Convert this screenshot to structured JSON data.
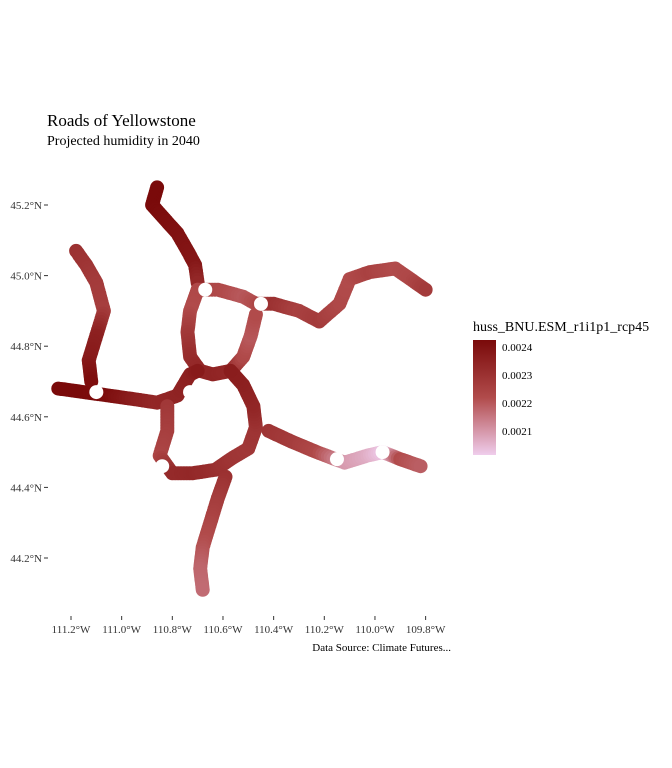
{
  "title": "Roads of Yellowstone",
  "subtitle": "Projected humidity in 2040",
  "caption": "Data Source: Climate Futures...",
  "legend": {
    "title": "huss_BNU.ESM_r1i1p1_rcp45",
    "labels": [
      "0.0024",
      "0.0023",
      "0.0022",
      "0.0021"
    ],
    "colors": {
      "high": "#7a0a0a",
      "mid": "#b14b4b",
      "low": "#efcdec"
    }
  },
  "axes": {
    "x_ticks": [
      "111.2°W",
      "111.0°W",
      "110.8°W",
      "110.6°W",
      "110.4°W",
      "110.2°W",
      "110.0°W",
      "109.8°W"
    ],
    "y_ticks": [
      "45.2°N",
      "45.0°N",
      "44.8°N",
      "44.6°N",
      "44.4°N",
      "44.2°N"
    ]
  },
  "chart_data": {
    "type": "scatter",
    "x_unit": "longitude (°W)",
    "y_unit": "latitude (°N)",
    "color_scale": {
      "min": 0.00205,
      "max": 0.00245
    },
    "roads": [
      {
        "id": "north-entrance",
        "points": [
          {
            "x": -110.86,
            "y": 45.25,
            "v": 0.00245
          },
          {
            "x": -110.88,
            "y": 45.2,
            "v": 0.00245
          },
          {
            "x": -110.83,
            "y": 45.16,
            "v": 0.00244
          },
          {
            "x": -110.78,
            "y": 45.12,
            "v": 0.00243
          },
          {
            "x": -110.74,
            "y": 45.07,
            "v": 0.00242
          },
          {
            "x": -110.71,
            "y": 45.03,
            "v": 0.00241
          },
          {
            "x": -110.7,
            "y": 44.98,
            "v": 0.00236
          }
        ]
      },
      {
        "id": "northeast-entrance",
        "points": [
          {
            "x": -110.7,
            "y": 44.96,
            "v": 0.00228
          },
          {
            "x": -110.62,
            "y": 44.96,
            "v": 0.00226
          },
          {
            "x": -110.52,
            "y": 44.94,
            "v": 0.00223
          },
          {
            "x": -110.47,
            "y": 44.92,
            "v": 0.00225
          },
          {
            "x": -110.4,
            "y": 44.92,
            "v": 0.00233
          },
          {
            "x": -110.3,
            "y": 44.9,
            "v": 0.00228
          },
          {
            "x": -110.22,
            "y": 44.87,
            "v": 0.0023
          },
          {
            "x": -110.14,
            "y": 44.92,
            "v": 0.00226
          },
          {
            "x": -110.1,
            "y": 44.99,
            "v": 0.00225
          },
          {
            "x": -110.02,
            "y": 45.01,
            "v": 0.00228
          },
          {
            "x": -109.92,
            "y": 45.02,
            "v": 0.00225
          },
          {
            "x": -109.86,
            "y": 44.99,
            "v": 0.00226
          },
          {
            "x": -109.8,
            "y": 44.96,
            "v": 0.0023
          }
        ]
      },
      {
        "id": "west-loop-north",
        "points": [
          {
            "x": -110.7,
            "y": 44.96,
            "v": 0.00226
          },
          {
            "x": -110.73,
            "y": 44.9,
            "v": 0.00225
          },
          {
            "x": -110.74,
            "y": 44.84,
            "v": 0.0023
          },
          {
            "x": -110.73,
            "y": 44.77,
            "v": 0.00234
          },
          {
            "x": -110.69,
            "y": 44.73,
            "v": 0.00236
          },
          {
            "x": -110.64,
            "y": 44.72,
            "v": 0.00237
          },
          {
            "x": -110.57,
            "y": 44.73,
            "v": 0.00236
          },
          {
            "x": -110.52,
            "y": 44.77,
            "v": 0.00226
          },
          {
            "x": -110.49,
            "y": 44.83,
            "v": 0.00223
          },
          {
            "x": -110.47,
            "y": 44.89,
            "v": 0.00225
          }
        ]
      },
      {
        "id": "west-entrance",
        "points": [
          {
            "x": -111.25,
            "y": 44.68,
            "v": 0.00245
          },
          {
            "x": -111.15,
            "y": 44.67,
            "v": 0.00245
          },
          {
            "x": -111.05,
            "y": 44.66,
            "v": 0.00244
          },
          {
            "x": -110.95,
            "y": 44.65,
            "v": 0.00239
          },
          {
            "x": -110.86,
            "y": 44.64,
            "v": 0.00236
          },
          {
            "x": -110.78,
            "y": 44.66,
            "v": 0.00237
          },
          {
            "x": -110.73,
            "y": 44.72,
            "v": 0.00238
          },
          {
            "x": -110.7,
            "y": 44.73,
            "v": 0.0024
          }
        ]
      },
      {
        "id": "northwest-route",
        "points": [
          {
            "x": -111.18,
            "y": 45.07,
            "v": 0.00233
          },
          {
            "x": -111.14,
            "y": 45.03,
            "v": 0.00232
          },
          {
            "x": -111.1,
            "y": 44.98,
            "v": 0.0023
          },
          {
            "x": -111.07,
            "y": 44.9,
            "v": 0.00229
          },
          {
            "x": -111.1,
            "y": 44.83,
            "v": 0.00238
          },
          {
            "x": -111.13,
            "y": 44.76,
            "v": 0.0024
          },
          {
            "x": -111.12,
            "y": 44.7,
            "v": 0.00244
          }
        ]
      },
      {
        "id": "lower-loop-west",
        "points": [
          {
            "x": -110.82,
            "y": 44.63,
            "v": 0.00231
          },
          {
            "x": -110.82,
            "y": 44.56,
            "v": 0.00229
          },
          {
            "x": -110.85,
            "y": 44.49,
            "v": 0.00227
          },
          {
            "x": -110.8,
            "y": 44.44,
            "v": 0.00235
          },
          {
            "x": -110.72,
            "y": 44.44,
            "v": 0.00236
          },
          {
            "x": -110.63,
            "y": 44.45,
            "v": 0.00234
          },
          {
            "x": -110.57,
            "y": 44.48,
            "v": 0.00232
          },
          {
            "x": -110.5,
            "y": 44.51,
            "v": 0.00231
          },
          {
            "x": -110.47,
            "y": 44.57,
            "v": 0.00232
          },
          {
            "x": -110.48,
            "y": 44.63,
            "v": 0.00236
          },
          {
            "x": -110.52,
            "y": 44.69,
            "v": 0.00238
          },
          {
            "x": -110.57,
            "y": 44.73,
            "v": 0.00239
          }
        ]
      },
      {
        "id": "east-entrance",
        "points": [
          {
            "x": -110.42,
            "y": 44.56,
            "v": 0.00232
          },
          {
            "x": -110.33,
            "y": 44.53,
            "v": 0.0023
          },
          {
            "x": -110.23,
            "y": 44.5,
            "v": 0.00226
          },
          {
            "x": -110.12,
            "y": 44.47,
            "v": 0.00213
          },
          {
            "x": -110.03,
            "y": 44.49,
            "v": 0.0021
          },
          {
            "x": -109.97,
            "y": 44.5,
            "v": 0.00206
          },
          {
            "x": -109.9,
            "y": 44.48,
            "v": 0.00225
          },
          {
            "x": -109.82,
            "y": 44.46,
            "v": 0.00222
          }
        ]
      },
      {
        "id": "south-entrance",
        "points": [
          {
            "x": -110.59,
            "y": 44.43,
            "v": 0.00233
          },
          {
            "x": -110.62,
            "y": 44.37,
            "v": 0.0023
          },
          {
            "x": -110.65,
            "y": 44.3,
            "v": 0.00227
          },
          {
            "x": -110.68,
            "y": 44.23,
            "v": 0.00224
          },
          {
            "x": -110.69,
            "y": 44.17,
            "v": 0.00221
          },
          {
            "x": -110.68,
            "y": 44.11,
            "v": 0.0022
          }
        ]
      }
    ],
    "gaps": [
      {
        "x": -110.73,
        "y": 44.67
      },
      {
        "x": -110.84,
        "y": 44.46
      },
      {
        "x": -111.1,
        "y": 44.67
      },
      {
        "x": -110.45,
        "y": 44.92
      },
      {
        "x": -110.67,
        "y": 44.96
      },
      {
        "x": -109.97,
        "y": 44.5
      },
      {
        "x": -110.15,
        "y": 44.48
      }
    ]
  }
}
